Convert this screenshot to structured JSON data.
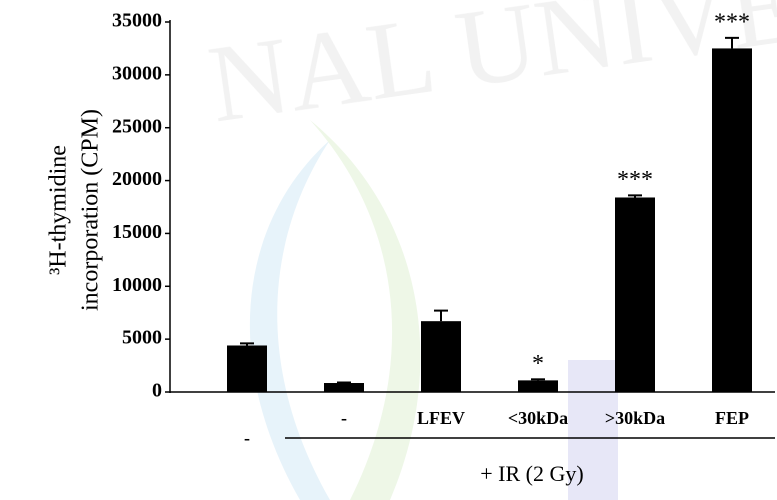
{
  "chart_data": {
    "type": "bar",
    "y_label": [
      "³H-thymidine",
      "incorporation (CPM)"
    ],
    "categories": [
      "-",
      "-",
      "LFEV",
      "<30kDa",
      ">30kDa",
      "FEP"
    ],
    "values": [
      4400,
      850,
      6700,
      1100,
      18400,
      32500
    ],
    "errors": [
      200,
      50,
      1000,
      100,
      200,
      1000
    ],
    "annotations": [
      null,
      null,
      null,
      "*",
      "***",
      "***"
    ],
    "group_label": "+ IR (2 Gy)",
    "color": "#000000",
    "ylim": [
      0,
      35000
    ],
    "yticks": [
      0,
      5000,
      10000,
      15000,
      20000,
      25000,
      30000,
      35000
    ]
  }
}
